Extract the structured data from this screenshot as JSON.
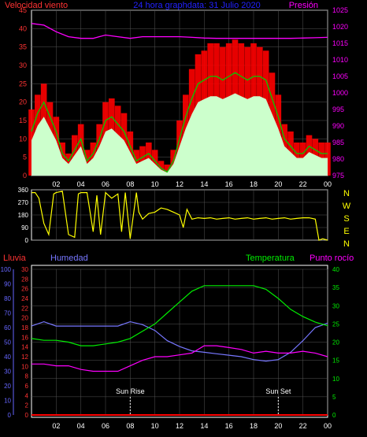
{
  "header": {
    "left_label": "Velocidad viento",
    "center_label": "24 hora graphdata: 31 Julio 2020",
    "right_label": "Presión"
  },
  "middle_panel": {
    "cardinal_labels": [
      "N",
      "W",
      "S",
      "E",
      "N"
    ]
  },
  "bottom_panel": {
    "labels": {
      "rain": "Lluvia",
      "humidity": "Humedad",
      "temperature": "Temperatura",
      "dewpoint": "Punto rocío",
      "sunrise": "Sun Rise",
      "sunset": "Sun Set"
    }
  },
  "colors": {
    "wind_gust": "#ff0000",
    "wind_avg": "#00d000",
    "wind_fill": "#ccffcc",
    "pressure": "#ff00ff",
    "direction": "#ffff00",
    "rain": "#ff0000",
    "humidity": "#7777ff",
    "temperature": "#00ee00",
    "dewpoint": "#ff00ff",
    "axis_left_top": "#ff3333",
    "axis_right_top": "#ff00ff",
    "axis_humidity": "#6666ff",
    "grid": "#555555",
    "frame": "#ffffff"
  },
  "chart_data": [
    {
      "type": "line",
      "title": "24 hora graphdata: 31 Julio 2020",
      "xlabel": "",
      "x_ticks": [
        "02",
        "04",
        "06",
        "08",
        "10",
        "12",
        "14",
        "16",
        "18",
        "20",
        "22",
        "00"
      ],
      "xlim_hours": [
        0,
        24
      ],
      "y_left": {
        "label": "Velocidad viento",
        "lim": [
          0,
          45
        ],
        "ticks": [
          0,
          5,
          10,
          15,
          20,
          25,
          30,
          35,
          40,
          45
        ]
      },
      "y_right": {
        "label": "Presión",
        "lim": [
          975,
          1025
        ],
        "ticks": [
          975,
          980,
          985,
          990,
          995,
          1000,
          1005,
          1010,
          1015,
          1020,
          1025
        ]
      },
      "series": [
        {
          "name": "Velocidad viento",
          "axis": "left",
          "x": [
            0,
            0.5,
            1,
            1.5,
            2,
            2.5,
            3,
            3.5,
            4,
            4.5,
            5,
            5.5,
            6,
            6.5,
            7,
            7.5,
            8,
            8.5,
            9,
            9.5,
            10,
            10.5,
            11,
            11.5,
            12,
            12.5,
            13,
            13.5,
            14,
            14.5,
            15,
            15.5,
            16,
            16.5,
            17,
            17.5,
            18,
            18.5,
            19,
            19.5,
            20,
            20.5,
            21,
            21.5,
            22,
            22.5,
            23,
            23.5,
            24
          ],
          "values": [
            12,
            17,
            20,
            16,
            12,
            6,
            4,
            7,
            10,
            4,
            6,
            10,
            15,
            16,
            14,
            12,
            8,
            4,
            5,
            6,
            4,
            2,
            1,
            4,
            10,
            16,
            21,
            25,
            26,
            27,
            27,
            26,
            27,
            28,
            27,
            26,
            27,
            27,
            26,
            21,
            16,
            10,
            8,
            6,
            6,
            8,
            7,
            6,
            6
          ]
        },
        {
          "name": "Racha",
          "axis": "left",
          "x": [
            0,
            0.5,
            1,
            1.5,
            2,
            2.5,
            3,
            3.5,
            4,
            4.5,
            5,
            5.5,
            6,
            6.5,
            7,
            7.5,
            8,
            8.5,
            9,
            9.5,
            10,
            10.5,
            11,
            11.5,
            12,
            12.5,
            13,
            13.5,
            14,
            14.5,
            15,
            15.5,
            16,
            16.5,
            17,
            17.5,
            18,
            18.5,
            19,
            19.5,
            20,
            20.5,
            21,
            21.5,
            22,
            22.5,
            23,
            23.5,
            24
          ],
          "values": [
            18,
            22,
            25,
            20,
            16,
            9,
            6,
            11,
            14,
            7,
            9,
            14,
            20,
            21,
            19,
            17,
            12,
            7,
            8,
            9,
            7,
            4,
            3,
            7,
            15,
            22,
            29,
            33,
            34,
            36,
            36,
            35,
            36,
            37,
            36,
            35,
            36,
            35,
            34,
            28,
            22,
            14,
            12,
            9,
            9,
            11,
            10,
            9,
            9
          ]
        },
        {
          "name": "Presión",
          "axis": "right",
          "x": [
            0,
            1,
            2,
            3,
            4,
            5,
            6,
            7,
            8,
            9,
            10,
            11,
            12,
            13,
            14,
            15,
            16,
            17,
            18,
            19,
            20,
            21,
            22,
            23,
            24
          ],
          "values": [
            1021.0,
            1020.5,
            1018.5,
            1017.0,
            1016.5,
            1016.5,
            1017.5,
            1017.0,
            1016.5,
            1017.0,
            1017.0,
            1017.0,
            1017.0,
            1016.8,
            1016.6,
            1016.5,
            1016.5,
            1016.5,
            1016.5,
            1016.5,
            1016.5,
            1016.5,
            1016.6,
            1016.7,
            1016.8
          ]
        }
      ]
    },
    {
      "type": "line",
      "x_ticks": [
        "02",
        "04",
        "06",
        "08",
        "10",
        "12",
        "14",
        "16",
        "18",
        "20",
        "22",
        "00"
      ],
      "xlim_hours": [
        0,
        24
      ],
      "y_left": {
        "lim": [
          0,
          360
        ],
        "ticks": [
          0,
          90,
          180,
          270,
          360
        ]
      },
      "y_right": {
        "labels": [
          "N",
          "W",
          "S",
          "E",
          "N"
        ]
      },
      "series": [
        {
          "name": "Dirección",
          "x": [
            0,
            0.3,
            0.6,
            1,
            1.4,
            1.8,
            2,
            2.5,
            3,
            3.5,
            3.8,
            4,
            4.5,
            5,
            5.3,
            5.6,
            6,
            6.5,
            7,
            7.3,
            7.6,
            8,
            8.5,
            8.7,
            9,
            9.5,
            10,
            10.5,
            11,
            11.5,
            12,
            12.3,
            12.6,
            13,
            13.5,
            14,
            14.5,
            15,
            15.5,
            16,
            16.5,
            17,
            17.5,
            18,
            18.5,
            19,
            19.5,
            20,
            20.5,
            21,
            21.5,
            22,
            22.5,
            23,
            23.3,
            23.6,
            24
          ],
          "values": [
            340,
            340,
            300,
            120,
            40,
            330,
            340,
            350,
            40,
            20,
            330,
            340,
            340,
            60,
            320,
            40,
            340,
            300,
            330,
            60,
            340,
            10,
            340,
            200,
            150,
            190,
            200,
            230,
            220,
            200,
            180,
            90,
            220,
            150,
            160,
            155,
            160,
            150,
            155,
            160,
            150,
            155,
            160,
            150,
            155,
            160,
            150,
            155,
            160,
            150,
            155,
            160,
            160,
            150,
            0,
            10,
            0
          ]
        }
      ]
    },
    {
      "type": "line",
      "x_ticks": [
        "02",
        "04",
        "06",
        "08",
        "10",
        "12",
        "14",
        "16",
        "18",
        "20",
        "22",
        "00"
      ],
      "xlim_hours": [
        0,
        24
      ],
      "y_axes": {
        "humidity": {
          "label": "Humedad",
          "lim": [
            0,
            100
          ],
          "ticks": [
            0,
            10,
            20,
            30,
            40,
            50,
            60,
            70,
            80,
            90,
            100
          ]
        },
        "rain": {
          "label": "Lluvia",
          "lim": [
            0,
            30
          ],
          "ticks": [
            0,
            2,
            4,
            6,
            8,
            10,
            12,
            14,
            16,
            18,
            20,
            22,
            24,
            26,
            28,
            30
          ]
        },
        "temperature": {
          "label": "Temperatura",
          "lim": [
            0,
            40
          ],
          "ticks": [
            0,
            5,
            10,
            15,
            20,
            25,
            30,
            35,
            40
          ]
        }
      },
      "annotations": [
        {
          "label": "Sun Rise",
          "hour": 8.0
        },
        {
          "label": "Sun Set",
          "hour": 20.0
        }
      ],
      "series": [
        {
          "name": "Humedad",
          "axis": "humidity",
          "x": [
            0,
            1,
            2,
            3,
            4,
            5,
            6,
            7,
            8,
            9,
            10,
            11,
            12,
            13,
            14,
            15,
            16,
            17,
            18,
            19,
            20,
            21,
            22,
            23,
            24
          ],
          "values": [
            61,
            64,
            61,
            61,
            61,
            61,
            61,
            61,
            64,
            62,
            58,
            51,
            47,
            44,
            43,
            42,
            41,
            40,
            38,
            37,
            38,
            43,
            51,
            60,
            63
          ]
        },
        {
          "name": "Temperatura",
          "axis": "temperature",
          "x": [
            0,
            1,
            2,
            3,
            4,
            5,
            6,
            7,
            8,
            9,
            10,
            11,
            12,
            13,
            14,
            15,
            16,
            17,
            18,
            19,
            20,
            21,
            22,
            23,
            24
          ],
          "values": [
            21,
            20.5,
            20.5,
            20,
            19,
            19,
            19.5,
            20,
            21,
            23,
            25,
            28,
            31,
            34,
            35.5,
            35.5,
            35.5,
            35.5,
            35.5,
            34.5,
            32,
            29,
            27,
            25.5,
            24.5
          ]
        },
        {
          "name": "Punto rocío",
          "axis": "temperature",
          "x": [
            0,
            1,
            2,
            3,
            4,
            5,
            6,
            7,
            8,
            9,
            10,
            11,
            12,
            13,
            14,
            15,
            16,
            17,
            18,
            19,
            20,
            21,
            22,
            23,
            24
          ],
          "values": [
            14,
            14,
            13.5,
            13.5,
            12.5,
            12,
            12,
            12,
            13.5,
            15,
            16,
            16,
            16.5,
            17,
            19,
            19,
            18.5,
            18,
            17,
            17.5,
            17,
            17,
            17.5,
            17,
            16
          ]
        },
        {
          "name": "Lluvia",
          "axis": "rain",
          "x": [
            0,
            24
          ],
          "values": [
            0,
            0
          ]
        }
      ]
    }
  ]
}
